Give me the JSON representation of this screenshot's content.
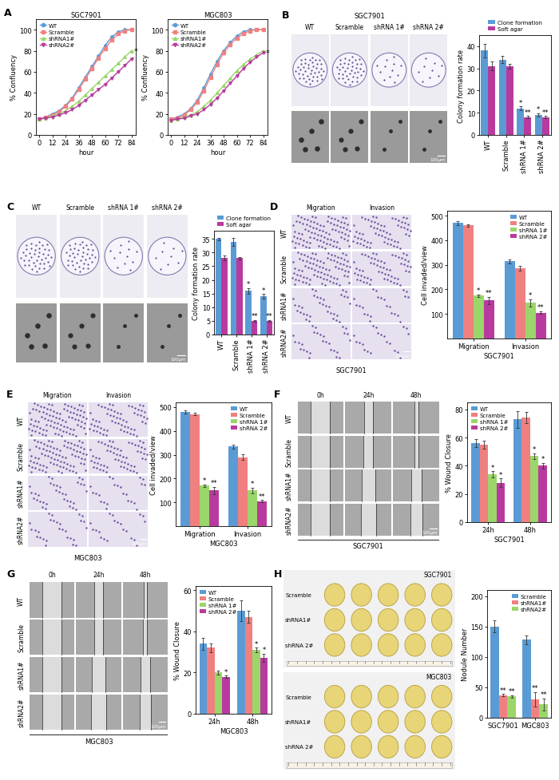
{
  "chart_data": [
    {
      "type": "line",
      "panel": "A",
      "title": "SGC7901",
      "x_label": "hour",
      "y_label": "% Confluency",
      "x": [
        0,
        6,
        12,
        18,
        24,
        30,
        36,
        42,
        48,
        54,
        60,
        66,
        72,
        78,
        84
      ],
      "xlim": [
        -3,
        88
      ],
      "ylim": [
        0,
        110
      ],
      "xticks": [
        0,
        12,
        24,
        36,
        48,
        60,
        72,
        84
      ],
      "yticks": [
        0,
        20,
        40,
        60,
        80,
        100
      ],
      "legend": "upper left",
      "series": [
        {
          "name": "WT",
          "color": "#5b9bd5",
          "marker": "circle",
          "values": [
            15,
            17,
            20,
            23,
            28,
            35,
            45,
            55,
            65,
            75,
            85,
            93,
            98,
            100,
            100
          ]
        },
        {
          "name": "Scramble",
          "color": "#f08080",
          "marker": "square",
          "values": [
            15,
            17,
            19,
            22,
            27,
            34,
            43,
            53,
            63,
            73,
            82,
            90,
            96,
            99,
            100
          ]
        },
        {
          "name": "shRNA1#",
          "color": "#9ad66a",
          "marker": "triangle_up",
          "values": [
            15,
            16,
            18,
            20,
            23,
            27,
            32,
            38,
            44,
            50,
            56,
            62,
            68,
            74,
            80
          ],
          "annotations": [
            null,
            null,
            null,
            null,
            null,
            null,
            null,
            null,
            null,
            null,
            null,
            null,
            null,
            null,
            "*"
          ]
        },
        {
          "name": "shRNA2#",
          "color": "#b93a9e",
          "marker": "triangle_down",
          "values": [
            15,
            16,
            17,
            19,
            21,
            24,
            28,
            33,
            38,
            43,
            48,
            54,
            60,
            66,
            72
          ]
        }
      ]
    },
    {
      "type": "line",
      "title": "MGC803",
      "x_label": "hour",
      "y_label": "% Confluency",
      "x": [
        0,
        6,
        12,
        18,
        24,
        30,
        36,
        42,
        48,
        54,
        60,
        66,
        72,
        78,
        84
      ],
      "xlim": [
        -3,
        88
      ],
      "ylim": [
        0,
        110
      ],
      "xticks": [
        0,
        12,
        24,
        36,
        48,
        60,
        72,
        84
      ],
      "yticks": [
        0,
        20,
        40,
        60,
        80,
        100
      ],
      "legend": "upper left",
      "series": [
        {
          "name": "WT",
          "color": "#5b9bd5",
          "marker": "circle",
          "values": [
            15,
            17,
            20,
            25,
            33,
            45,
            58,
            70,
            80,
            88,
            94,
            98,
            100,
            100,
            100
          ]
        },
        {
          "name": "Scramble",
          "color": "#f08080",
          "marker": "square",
          "values": [
            15,
            16,
            19,
            24,
            31,
            42,
            55,
            67,
            78,
            86,
            92,
            96,
            99,
            100,
            100
          ]
        },
        {
          "name": "shRNA1#",
          "color": "#9ad66a",
          "marker": "triangle_up",
          "values": [
            14,
            15,
            17,
            19,
            22,
            27,
            33,
            40,
            47,
            54,
            61,
            67,
            72,
            76,
            80
          ]
        },
        {
          "name": "shRNA2#",
          "color": "#b93a9e",
          "marker": "triangle_down",
          "values": [
            14,
            15,
            16,
            18,
            20,
            24,
            29,
            35,
            42,
            49,
            56,
            63,
            69,
            74,
            78
          ],
          "annotations": [
            null,
            null,
            null,
            null,
            null,
            null,
            null,
            null,
            null,
            null,
            null,
            null,
            null,
            null,
            "*"
          ]
        }
      ]
    },
    {
      "type": "bar",
      "y_label": "Colony formation rate",
      "categories": [
        "WT",
        "Scramble",
        "shRNA 1#",
        "shRNA 2#"
      ],
      "ylim": [
        0,
        45
      ],
      "yticks": [
        0,
        10,
        20,
        30,
        40
      ],
      "legend": "top",
      "series": [
        {
          "name": "Clone formation",
          "color": "#5b9bd5",
          "values": [
            38,
            34,
            12,
            9
          ],
          "errors": [
            3,
            1.5,
            0.8,
            0.8
          ],
          "annotations": [
            null,
            null,
            "*",
            "*"
          ]
        },
        {
          "name": "Soft agar",
          "color": "#b93a9e",
          "values": [
            31,
            31,
            8,
            8
          ],
          "errors": [
            2,
            1,
            0.5,
            0.5
          ],
          "annotations": [
            null,
            null,
            "**",
            "**"
          ]
        }
      ]
    },
    {
      "type": "bar",
      "y_label": "Colony formation rate",
      "categories": [
        "WT",
        "Scramble",
        "shRNA 1#",
        "shRNA 2#"
      ],
      "ylim": [
        0,
        38
      ],
      "yticks": [
        0,
        5,
        10,
        15,
        20,
        25,
        30,
        35
      ],
      "legend": "top",
      "series": [
        {
          "name": "Clone formation",
          "color": "#5b9bd5",
          "values": [
            35,
            34,
            16,
            14
          ],
          "errors": [
            0.5,
            1.5,
            1,
            0.8
          ],
          "annotations": [
            null,
            null,
            "*",
            "*"
          ]
        },
        {
          "name": "Soft agar",
          "color": "#b93a9e",
          "values": [
            28,
            28,
            5,
            5
          ],
          "errors": [
            0.8,
            0.5,
            0.4,
            0.4
          ],
          "annotations": [
            null,
            null,
            "**",
            "**"
          ]
        }
      ]
    },
    {
      "type": "bar",
      "x_label": "SGC7901",
      "y_label": "Cell invaded/view",
      "categories": [
        "Migration",
        "Invasion"
      ],
      "ylim": [
        0,
        520
      ],
      "yticks": [
        100,
        200,
        300,
        400,
        500
      ],
      "legend": "upper right",
      "series": [
        {
          "name": "WT",
          "color": "#5b9bd5",
          "values": [
            470,
            315
          ],
          "errors": [
            8,
            8
          ]
        },
        {
          "name": "Scramble",
          "color": "#f08080",
          "values": [
            460,
            285
          ],
          "errors": [
            5,
            10
          ]
        },
        {
          "name": "shRNA 1#",
          "color": "#9ad66a",
          "values": [
            175,
            145
          ],
          "errors": [
            5,
            15
          ],
          "annotations": [
            "*",
            "*"
          ]
        },
        {
          "name": "shRNA 2#",
          "color": "#b93a9e",
          "values": [
            155,
            105
          ],
          "errors": [
            15,
            5
          ],
          "annotations": [
            "**",
            "**"
          ]
        }
      ]
    },
    {
      "type": "bar",
      "x_label": "MGC803",
      "y_label": "Cell invaded/view",
      "categories": [
        "Migration",
        "Invasion"
      ],
      "ylim": [
        0,
        520
      ],
      "yticks": [
        100,
        200,
        300,
        400,
        500
      ],
      "legend": "upper right",
      "series": [
        {
          "name": "WT",
          "color": "#5b9bd5",
          "values": [
            480,
            335
          ],
          "errors": [
            6,
            8
          ]
        },
        {
          "name": "Scramble",
          "color": "#f08080",
          "values": [
            470,
            290
          ],
          "errors": [
            5,
            12
          ]
        },
        {
          "name": "shRNA 1#",
          "color": "#9ad66a",
          "values": [
            170,
            150
          ],
          "errors": [
            5,
            12
          ],
          "annotations": [
            "*",
            "*"
          ]
        },
        {
          "name": "shRNA 2#",
          "color": "#b93a9e",
          "values": [
            150,
            105
          ],
          "errors": [
            15,
            5
          ],
          "annotations": [
            "**",
            "**"
          ]
        }
      ]
    },
    {
      "type": "bar",
      "x_label": "SGC7901",
      "y_label": "% Wound Closure",
      "categories": [
        "24h",
        "48h"
      ],
      "ylim": [
        0,
        85
      ],
      "yticks": [
        0,
        20,
        40,
        60,
        80
      ],
      "legend": "upper left",
      "series": [
        {
          "name": "WT",
          "color": "#5b9bd5",
          "values": [
            56,
            73
          ],
          "errors": [
            3,
            6
          ]
        },
        {
          "name": "Scramble",
          "color": "#f08080",
          "values": [
            55,
            74
          ],
          "errors": [
            3,
            4
          ]
        },
        {
          "name": "shRNA 1#",
          "color": "#9ad66a",
          "values": [
            34,
            47
          ],
          "errors": [
            2,
            2
          ],
          "annotations": [
            "*",
            "*"
          ]
        },
        {
          "name": "shRNA 2#",
          "color": "#b93a9e",
          "values": [
            28,
            40
          ],
          "errors": [
            3,
            2
          ],
          "annotations": [
            "*",
            "*"
          ]
        }
      ]
    },
    {
      "type": "bar",
      "x_label": "MGC803",
      "y_label": "% Wound Closure",
      "categories": [
        "24h",
        "48h"
      ],
      "ylim": [
        0,
        62
      ],
      "yticks": [
        0,
        20,
        40,
        60
      ],
      "legend": "upper left",
      "series": [
        {
          "name": "WT",
          "color": "#5b9bd5",
          "values": [
            34,
            50
          ],
          "errors": [
            3,
            5
          ]
        },
        {
          "name": "Scramble",
          "color": "#f08080",
          "values": [
            32,
            47
          ],
          "errors": [
            2,
            3
          ]
        },
        {
          "name": "shRNA 1#",
          "color": "#9ad66a",
          "values": [
            20,
            31
          ],
          "errors": [
            1,
            1
          ],
          "annotations": [
            null,
            "*"
          ]
        },
        {
          "name": "shRNA 2#",
          "color": "#b93a9e",
          "values": [
            18,
            27
          ],
          "errors": [
            0.5,
            2
          ],
          "annotations": [
            "*",
            "*"
          ]
        }
      ]
    },
    {
      "type": "bar",
      "y_label": "Nodule Number",
      "categories": [
        "SGC7901",
        "MGC803"
      ],
      "ylim": [
        0,
        210
      ],
      "yticks": [
        0,
        50,
        100,
        150,
        200
      ],
      "legend": "upper right",
      "series": [
        {
          "name": "Scramble",
          "color": "#5b9bd5",
          "values": [
            150,
            128
          ],
          "errors": [
            10,
            7
          ]
        },
        {
          "name": "shRNA1#",
          "color": "#f08080",
          "values": [
            37,
            30
          ],
          "errors": [
            2,
            12
          ],
          "annotations": [
            "**",
            "**"
          ]
        },
        {
          "name": "shRNA2#",
          "color": "#9ad66a",
          "values": [
            35,
            22
          ],
          "errors": [
            2,
            10
          ],
          "annotations": [
            "**",
            "**"
          ]
        }
      ]
    }
  ],
  "image_panels": [
    {
      "panel": "B",
      "title": "SGC7901",
      "columns": [
        "WT",
        "Scramble",
        "shRNA 1#",
        "shRNA 2#"
      ],
      "scale_bar": "100μm"
    },
    {
      "panel": "C",
      "columns": [
        "WT",
        "Scramble",
        "shRNA 1#",
        "shRNA 2#"
      ],
      "scale_bar": "100μm"
    },
    {
      "panel": "D",
      "columns": [
        "Migration",
        "Invasion"
      ],
      "rows": [
        "WT",
        "Scramble",
        "shRNA1#",
        "shRNA2#"
      ],
      "caption": "SGC7901",
      "scale_bar": "100μm"
    },
    {
      "panel": "E",
      "columns": [
        "Migration",
        "Invasion"
      ],
      "rows": [
        "WT",
        "Scramble",
        "shRNA1#",
        "shRNA2#"
      ],
      "caption": "MGC803",
      "scale_bar": "100μm"
    },
    {
      "panel": "F",
      "columns": [
        "0h",
        "24h",
        "48h"
      ],
      "rows": [
        "WT",
        "Scramble",
        "shRNA1#",
        "shRNA2#"
      ],
      "caption": "SGC7901",
      "scale_bar": "100μm"
    },
    {
      "panel": "G",
      "columns": [
        "0h",
        "24h",
        "48h"
      ],
      "rows": [
        "WT",
        "Scramble",
        "shRNA1#",
        "shRNA2#"
      ],
      "caption": "MGC803",
      "scale_bar": "100μm"
    },
    {
      "panel": "H",
      "groups": [
        {
          "title": "SGC7901",
          "rows": [
            "Scramble",
            "shRNA1#",
            "shRNA 2#"
          ]
        },
        {
          "title": "MGC803",
          "rows": [
            "Scramble",
            "shRNA1#",
            "shRNA 2#"
          ]
        }
      ]
    }
  ]
}
